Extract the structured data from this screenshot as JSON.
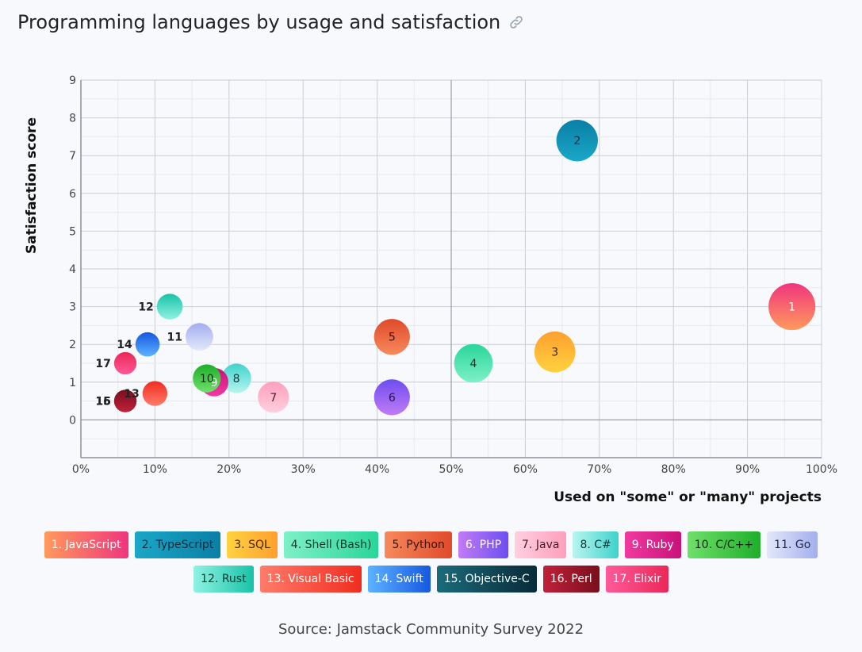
{
  "page": {
    "title": "Programming languages by usage and satisfaction",
    "source": "Source: Jamstack Community Survey 2022"
  },
  "chart_data": {
    "type": "bubble",
    "title": "Programming languages by usage and satisfaction",
    "xlabel": "Used on \"some\" or \"many\" projects",
    "ylabel": "Satisfaction score",
    "xlim": [
      0,
      100
    ],
    "ylim": [
      -1,
      9
    ],
    "xticks": [
      "0%",
      "10%",
      "20%",
      "30%",
      "40%",
      "50%",
      "60%",
      "70%",
      "80%",
      "90%",
      "100%"
    ],
    "yticks": [
      "0",
      "1",
      "2",
      "3",
      "4",
      "5",
      "6",
      "7",
      "8",
      "9"
    ],
    "grid": true,
    "legend": "bottom",
    "points": [
      {
        "id": "1",
        "name": "JavaScript",
        "x": 96,
        "y": 3.0,
        "size": 96,
        "colors": [
          "#ff9a5c",
          "#f0357e"
        ],
        "text": "#ffffff",
        "legend_text": "#ffffff",
        "label_inside": true
      },
      {
        "id": "2",
        "name": "TypeScript",
        "x": 67,
        "y": 7.4,
        "size": 67,
        "colors": [
          "#1aa7c7",
          "#0a7fa6"
        ],
        "text": "#1d2b36",
        "legend_text": "#1d2b36",
        "label_inside": true
      },
      {
        "id": "3",
        "name": "SQL",
        "x": 64,
        "y": 1.8,
        "size": 64,
        "colors": [
          "#ffd23f",
          "#ff9f2e"
        ],
        "text": "#3b2a00",
        "legend_text": "#3b2a00",
        "label_inside": true
      },
      {
        "id": "4",
        "name": "Shell (Bash)",
        "x": 53,
        "y": 1.5,
        "size": 53,
        "colors": [
          "#7ef0c7",
          "#29d69a"
        ],
        "text": "#113a2c",
        "legend_text": "#113a2c",
        "label_inside": true
      },
      {
        "id": "5",
        "name": "Python",
        "x": 42,
        "y": 2.2,
        "size": 42,
        "colors": [
          "#f68a5c",
          "#e04a2a"
        ],
        "text": "#3a1206",
        "legend_text": "#3a1206",
        "label_inside": true
      },
      {
        "id": "6",
        "name": "PHP",
        "x": 42,
        "y": 0.6,
        "size": 42,
        "colors": [
          "#c27bf5",
          "#6d4ef0"
        ],
        "text": "#241246",
        "legend_text": "#ffffff",
        "label_inside": true
      },
      {
        "id": "7",
        "name": "Java",
        "x": 26,
        "y": 0.6,
        "size": 26,
        "colors": [
          "#ffd0df",
          "#ff9ebd"
        ],
        "text": "#4a1a2a",
        "legend_text": "#4a1a2a",
        "label_inside": true
      },
      {
        "id": "8",
        "name": "C#",
        "x": 21,
        "y": 1.1,
        "size": 21,
        "colors": [
          "#b8f5f0",
          "#3fd3cc"
        ],
        "text": "#0f3a38",
        "legend_text": "#0f3a38",
        "label_inside": true
      },
      {
        "id": "9",
        "name": "Ruby",
        "x": 18,
        "y": 1.0,
        "size": 18,
        "colors": [
          "#f03aa0",
          "#c8127a"
        ],
        "text": "#ffffff",
        "legend_text": "#ffffff",
        "label_inside": true
      },
      {
        "id": "10",
        "name": "C/C++",
        "x": 17,
        "y": 1.1,
        "size": 17,
        "colors": [
          "#6fe06a",
          "#1fae2b"
        ],
        "text": "#0b2a0a",
        "legend_text": "#0b2a0a",
        "label_inside": true
      },
      {
        "id": "11",
        "name": "Go",
        "x": 16,
        "y": 2.2,
        "size": 16,
        "colors": [
          "#e3e8fb",
          "#a3aeee"
        ],
        "text": "#1f2a48",
        "legend_text": "#1f2a48",
        "label_inside": false
      },
      {
        "id": "12",
        "name": "Rust",
        "x": 12,
        "y": 3.0,
        "size": 12,
        "colors": [
          "#8ff2e1",
          "#19c2a8"
        ],
        "text": "#0d3a33",
        "legend_text": "#0d3a33",
        "label_inside": false
      },
      {
        "id": "13",
        "name": "Visual Basic",
        "x": 10,
        "y": 0.7,
        "size": 10,
        "colors": [
          "#ff7b6b",
          "#f02d1f"
        ],
        "text": "#ffffff",
        "legend_text": "#ffffff",
        "label_inside": false
      },
      {
        "id": "14",
        "name": "Swift",
        "x": 9,
        "y": 2.0,
        "size": 9,
        "colors": [
          "#5cb3ff",
          "#1758e0"
        ],
        "text": "#ffffff",
        "legend_text": "#ffffff",
        "label_inside": false
      },
      {
        "id": "15",
        "name": "Objective-C",
        "x": 6,
        "y": 0.5,
        "size": 6,
        "colors": [
          "#1b6b7a",
          "#082a38"
        ],
        "text": "#ffffff",
        "legend_text": "#ffffff",
        "label_inside": false
      },
      {
        "id": "16",
        "name": "Perl",
        "x": 6,
        "y": 0.5,
        "size": 6,
        "colors": [
          "#c0213a",
          "#7a0f1c"
        ],
        "text": "#ffffff",
        "legend_text": "#ffffff",
        "label_inside": false
      },
      {
        "id": "17",
        "name": "Elixir",
        "x": 6,
        "y": 1.5,
        "size": 6,
        "colors": [
          "#ff5a9a",
          "#ea2858"
        ],
        "text": "#ffffff",
        "legend_text": "#ffffff",
        "label_inside": false
      }
    ],
    "legend_rows": [
      [
        0,
        1,
        2,
        3,
        4,
        5,
        6,
        7,
        8,
        9,
        10
      ],
      [
        11,
        12,
        13,
        14,
        15,
        16
      ]
    ]
  }
}
